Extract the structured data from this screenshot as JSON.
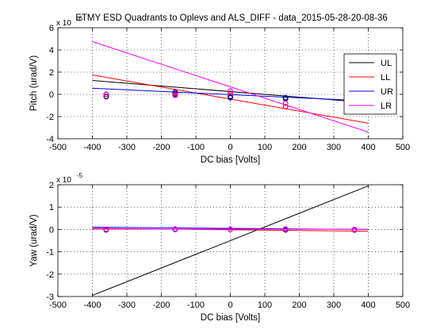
{
  "figure": {
    "title": "ETMY ESD Quadrants to Oplevs and ALS_DIFF - data_2015-05-28-20-08-36"
  },
  "chart_data": [
    {
      "type": "line",
      "title": "ETMY ESD Quadrants to Oplevs and ALS_DIFF - data_2015-05-28-20-08-36",
      "xlabel": "DC bias [Volts]",
      "ylabel": "Pitch (urad/V)",
      "exponent_label": "x 10",
      "exponent_power": "-6",
      "scale": 1e-06,
      "xlim": [
        -500,
        500
      ],
      "ylim": [
        -4,
        6
      ],
      "xticks": [
        -500,
        -400,
        -300,
        -200,
        -100,
        0,
        100,
        200,
        300,
        400,
        500
      ],
      "yticks": [
        -4,
        -2,
        0,
        2,
        4,
        6
      ],
      "xtick_labels": [
        "-500",
        "-400",
        "-300",
        "-200",
        "-100",
        "0",
        "100",
        "200",
        "300",
        "400",
        "500"
      ],
      "ytick_labels": [
        "-4",
        "-2",
        "0",
        "2",
        "4",
        "6"
      ],
      "grid": true,
      "legend": "top-right",
      "series": [
        {
          "name": "UL",
          "color": "#000000",
          "fit_x": [
            -400,
            400
          ],
          "fit_y": [
            1.25,
            -0.75
          ],
          "x": [
            -360,
            -160,
            0,
            160
          ],
          "y": [
            -0.2,
            0.0,
            -0.2,
            -0.4
          ]
        },
        {
          "name": "LL",
          "color": "#ff0000",
          "fit_x": [
            -400,
            400
          ],
          "fit_y": [
            1.75,
            -2.6
          ],
          "x": [
            -360,
            -160,
            0,
            160
          ],
          "y": [
            0.0,
            0.1,
            0.1,
            -1.1
          ]
        },
        {
          "name": "UR",
          "color": "#0000ff",
          "fit_x": [
            -400,
            400
          ],
          "fit_y": [
            0.55,
            -0.6
          ],
          "x": [
            -360,
            -160,
            0,
            160
          ],
          "y": [
            0.0,
            0.2,
            -0.3,
            -0.3
          ]
        },
        {
          "name": "LR",
          "color": "#ff00ff",
          "fit_x": [
            -400,
            400
          ],
          "fit_y": [
            4.75,
            -3.4
          ],
          "x": [
            -360,
            -160,
            0,
            160
          ],
          "y": [
            0.0,
            -0.1,
            0.3,
            -0.8
          ]
        }
      ]
    },
    {
      "type": "line",
      "title": "",
      "xlabel": "DC bias [Volts]",
      "ylabel": "Yaw (urad/V)",
      "exponent_label": "x 10",
      "exponent_power": "-5",
      "scale": 1e-05,
      "xlim": [
        -500,
        500
      ],
      "ylim": [
        -3,
        2
      ],
      "xticks": [
        -500,
        -400,
        -300,
        -200,
        -100,
        0,
        100,
        200,
        300,
        400,
        500
      ],
      "yticks": [
        -3,
        -2,
        -1,
        0,
        1,
        2
      ],
      "xtick_labels": [
        "-500",
        "-400",
        "-300",
        "-200",
        "-100",
        "0",
        "100",
        "200",
        "300",
        "400",
        "500"
      ],
      "ytick_labels": [
        "-3",
        "-2",
        "-1",
        "0",
        "1",
        "2"
      ],
      "grid": true,
      "legend": "none",
      "series": [
        {
          "name": "UL",
          "color": "#000000",
          "fit_x": [
            -400,
            400
          ],
          "fit_y": [
            -2.95,
            1.95
          ],
          "x": [
            -360,
            -160,
            0,
            160,
            360
          ],
          "y": [
            -0.02,
            0.0,
            0.0,
            -0.02,
            -0.03
          ]
        },
        {
          "name": "LL",
          "color": "#ff0000",
          "fit_x": [
            -400,
            400
          ],
          "fit_y": [
            0.05,
            -0.08
          ],
          "x": [
            -360,
            -160,
            0,
            160,
            360
          ],
          "y": [
            0.0,
            0.0,
            0.0,
            0.0,
            -0.02
          ]
        },
        {
          "name": "UR",
          "color": "#0000ff",
          "fit_x": [
            -400,
            400
          ],
          "fit_y": [
            0.1,
            0.0
          ],
          "x": [
            -360,
            -160,
            0,
            160,
            360
          ],
          "y": [
            0.0,
            0.01,
            0.0,
            0.0,
            0.0
          ]
        },
        {
          "name": "LR",
          "color": "#ff00ff",
          "fit_x": [
            -400,
            400
          ],
          "fit_y": [
            0.02,
            0.01
          ],
          "x": [
            -360,
            -160,
            0,
            160,
            360
          ],
          "y": [
            0.01,
            0.02,
            0.0,
            0.02,
            0.0
          ]
        }
      ]
    }
  ]
}
